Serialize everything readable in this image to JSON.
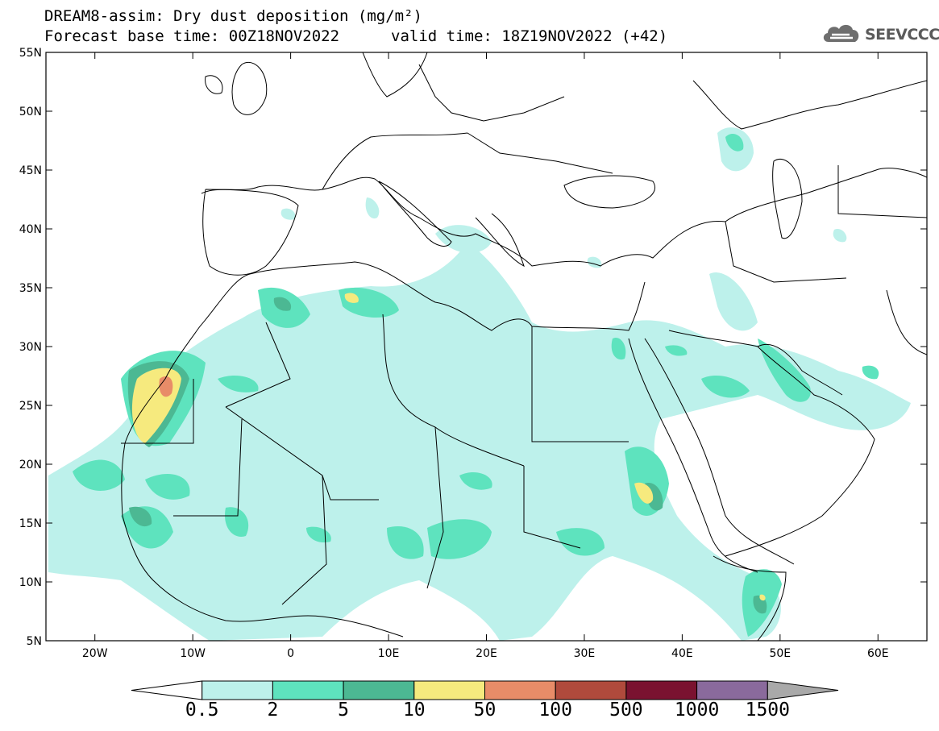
{
  "header": {
    "title": "DREAM8-assim: Dry dust deposition (mg/m²)",
    "forecast_base": "Forecast base time: 00Z18NOV2022",
    "valid_time": "valid time: 18Z19NOV2022 (+42)",
    "logo_text": "SEEVCCC"
  },
  "map": {
    "lon_range": [
      -25,
      65
    ],
    "lat_range": [
      5,
      55
    ],
    "lat_ticks": [
      "55N",
      "50N",
      "45N",
      "40N",
      "35N",
      "30N",
      "25N",
      "20N",
      "15N",
      "10N",
      "5N"
    ],
    "lon_ticks": [
      "20W",
      "10W",
      "0",
      "10E",
      "20E",
      "30E",
      "40E",
      "50E",
      "60E"
    ]
  },
  "legend": {
    "levels": [
      "0.5",
      "2",
      "5",
      "10",
      "50",
      "100",
      "500",
      "1000",
      "1500"
    ],
    "colors": [
      "#ffffff",
      "#bdf1eb",
      "#5ee3be",
      "#4cb893",
      "#f6ea7e",
      "#e88c68",
      "#b04a3c",
      "#7a1230",
      "#8a6a9c",
      "#a9a9a9"
    ]
  }
}
